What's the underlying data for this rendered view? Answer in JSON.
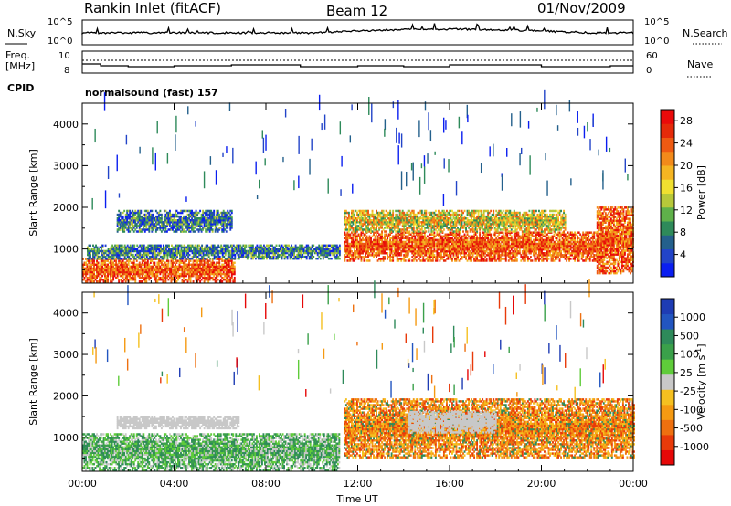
{
  "header": {
    "station": "Rankin Inlet (fitACF)",
    "beam": "Beam 12",
    "date": "01/Nov/2009"
  },
  "noise_panel": {
    "left_label": "N.Sky",
    "right_label": "N.Search",
    "left_ticks": [
      "10^5",
      "10^0"
    ],
    "right_ticks": [
      "10^5",
      "10^0"
    ]
  },
  "freq_panel": {
    "left_label_line1": "Freq.",
    "left_label_line2": "[MHz]",
    "right_label": "Nave",
    "left_ticks": [
      "10",
      "8"
    ],
    "right_ticks": [
      "60",
      "0"
    ]
  },
  "cpid": {
    "label": "CPID",
    "text": "normalsound (fast) 157"
  },
  "chart_data": [
    {
      "type": "heatmap",
      "name_printed": "",
      "xlabel": "Time UT",
      "ylabel": "Slant Range [km]",
      "xlim": [
        "00:00",
        "24:00"
      ],
      "ylim": [
        180,
        4500
      ],
      "x_ticks": [
        "00:00",
        "04:00",
        "08:00",
        "12:00",
        "16:00",
        "20:00",
        "00:00"
      ],
      "y_ticks": [
        "1000",
        "2000",
        "3000",
        "4000"
      ],
      "colorbar": {
        "label": "Power [dB]",
        "ticks": [
          "4",
          "8",
          "12",
          "16",
          "20",
          "24",
          "28"
        ],
        "range": [
          0,
          30
        ],
        "colors": [
          "#0a1ef0",
          "#2244c8",
          "#24608c",
          "#2e8a5a",
          "#5fb14a",
          "#b7c83a",
          "#f0e030",
          "#f5b522",
          "#f28a1a",
          "#ee5a12",
          "#e52a0a",
          "#ea0a0a"
        ]
      },
      "echo_regions": [
        {
          "t_start": 0.0,
          "t_end": 6.6,
          "r_start": 200,
          "r_end": 750,
          "level": "high"
        },
        {
          "t_start": 0.2,
          "t_end": 11.2,
          "r_start": 750,
          "r_end": 1100,
          "level": "low"
        },
        {
          "t_start": 1.5,
          "t_end": 6.5,
          "r_start": 1400,
          "r_end": 1900,
          "level": "low"
        },
        {
          "t_start": 11.4,
          "t_end": 22.4,
          "r_start": 700,
          "r_end": 1400,
          "level": "high"
        },
        {
          "t_start": 11.4,
          "t_end": 21.0,
          "r_start": 1400,
          "r_end": 1900,
          "level": "mid"
        },
        {
          "t_start": 22.4,
          "t_end": 24.0,
          "r_start": 400,
          "r_end": 2000,
          "level": "high"
        }
      ]
    },
    {
      "type": "heatmap",
      "name_printed": "",
      "xlabel": "Time UT",
      "ylabel": "Slant Range [km]",
      "xlim": [
        "00:00",
        "24:00"
      ],
      "ylim": [
        180,
        4500
      ],
      "x_ticks": [
        "00:00",
        "04:00",
        "08:00",
        "12:00",
        "16:00",
        "20:00",
        "00:00"
      ],
      "y_ticks": [
        "1000",
        "2000",
        "3000",
        "4000"
      ],
      "colorbar": {
        "label": "Velocity [m s^-1]",
        "ticks": [
          "1000",
          "500",
          "100",
          "25",
          "-25",
          "-100",
          "-500",
          "-1000"
        ],
        "colors": [
          "#1e3cb4",
          "#2255c0",
          "#2e8a5a",
          "#3aa04a",
          "#5fcc3a",
          "#c8c8c8",
          "#f5c020",
          "#f59a12",
          "#ee7010",
          "#e83a0a",
          "#e60808"
        ]
      },
      "echo_regions": [
        {
          "t_start": 0.0,
          "t_end": 11.2,
          "r_start": 200,
          "r_end": 1100,
          "level": "positive"
        },
        {
          "t_start": 1.5,
          "t_end": 6.8,
          "r_start": 1200,
          "r_end": 1500,
          "level": "near-zero"
        },
        {
          "t_start": 11.4,
          "t_end": 24.0,
          "r_start": 500,
          "r_end": 1900,
          "level": "negative"
        },
        {
          "t_start": 14.2,
          "t_end": 18.0,
          "r_start": 1100,
          "r_end": 1600,
          "level": "near-zero"
        }
      ]
    }
  ]
}
